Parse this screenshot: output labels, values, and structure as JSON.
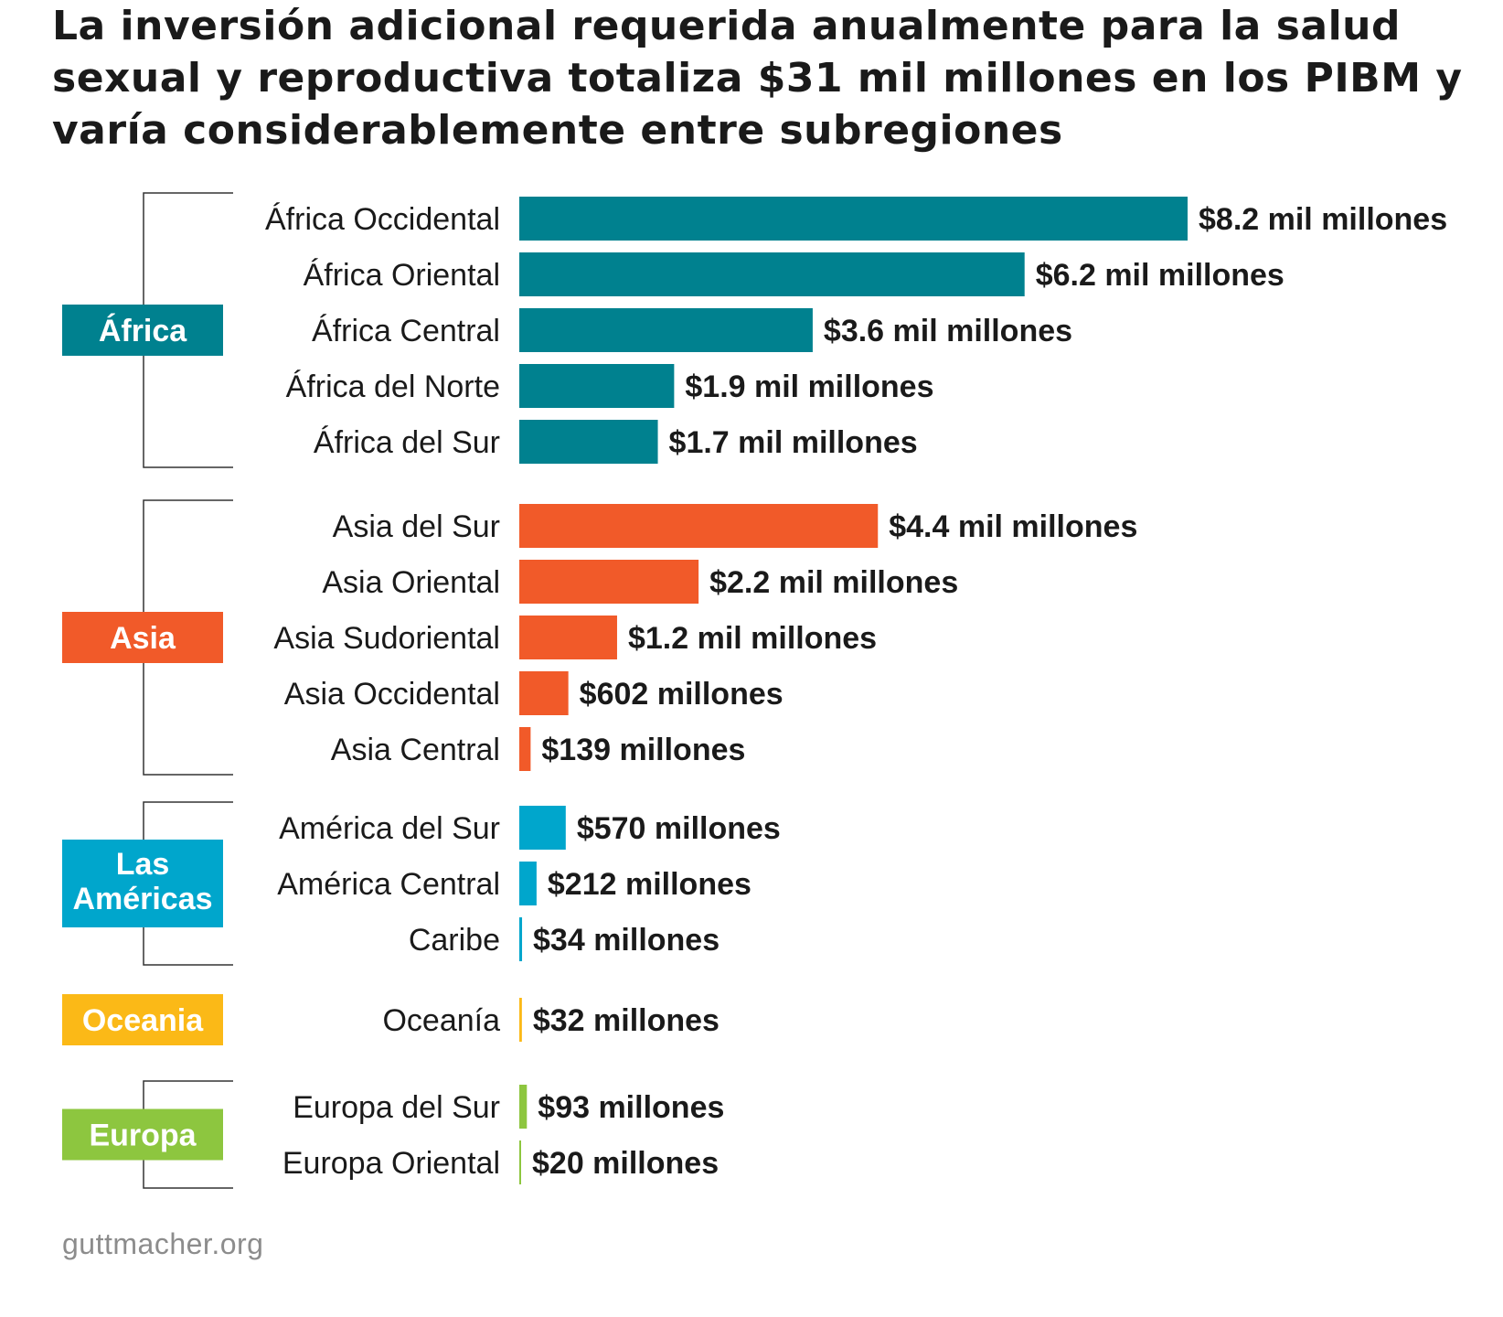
{
  "chart_data": {
    "type": "bar",
    "orientation": "horizontal",
    "title": "La inversión adicional requerida anualmente para la salud sexual y reproductiva totaliza $31 mil millones en los PIBM y varía considerablemente entre subregiones",
    "source": "guttmacher.org",
    "unit": "millones",
    "groups": [
      {
        "name": "África",
        "color": "#00818f",
        "items": [
          {
            "label": "África Occidental",
            "value": 8200,
            "display": "$8.2 mil millones"
          },
          {
            "label": "África Oriental",
            "value": 6200,
            "display": "$6.2 mil millones"
          },
          {
            "label": "África Central",
            "value": 3600,
            "display": "$3.6 mil millones"
          },
          {
            "label": "África del Norte",
            "value": 1900,
            "display": "$1.9 mil millones"
          },
          {
            "label": "África del Sur",
            "value": 1700,
            "display": "$1.7 mil millones"
          }
        ]
      },
      {
        "name": "Asia",
        "color": "#f15a29",
        "items": [
          {
            "label": "Asia del Sur",
            "value": 4400,
            "display": "$4.4 mil millones"
          },
          {
            "label": "Asia Oriental",
            "value": 2200,
            "display": "$2.2 mil millones"
          },
          {
            "label": "Asia Sudoriental",
            "value": 1200,
            "display": "$1.2 mil millones"
          },
          {
            "label": "Asia Occidental",
            "value": 602,
            "display": "$602 millones"
          },
          {
            "label": "Asia Central",
            "value": 139,
            "display": "$139 millones"
          }
        ]
      },
      {
        "name": "Las Américas",
        "color": "#00a6cc",
        "items": [
          {
            "label": "América del Sur",
            "value": 570,
            "display": "$570 millones"
          },
          {
            "label": "América Central",
            "value": 212,
            "display": "$212 millones"
          },
          {
            "label": "Caribe",
            "value": 34,
            "display": "$34 millones"
          }
        ]
      },
      {
        "name": "Oceania",
        "color": "#fbb917",
        "items": [
          {
            "label": "Oceanía",
            "value": 32,
            "display": "$32 millones"
          }
        ]
      },
      {
        "name": "Europa",
        "color": "#8dc63f",
        "items": [
          {
            "label": "Europa del Sur",
            "value": 93,
            "display": "$93 millones"
          },
          {
            "label": "Europa Oriental",
            "value": 20,
            "display": "$20 millones"
          }
        ]
      }
    ]
  }
}
